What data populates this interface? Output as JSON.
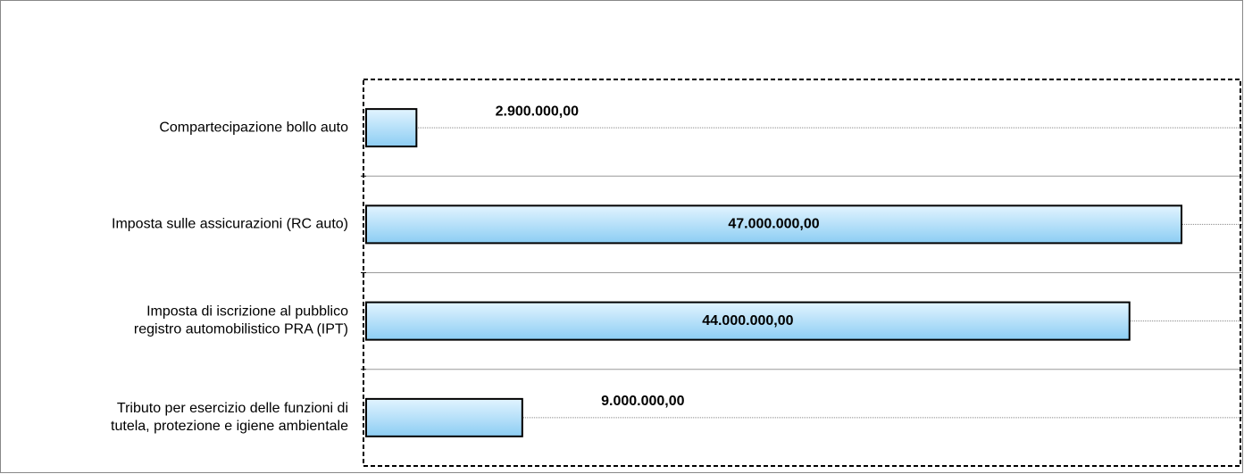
{
  "chart_data": {
    "type": "barh",
    "categories": [
      "Compartecipazione bollo auto",
      "Imposta sulle assicurazioni (RC auto)",
      "Imposta di iscrizione al pubblico\nregistro automobilistico PRA (IPT)",
      "Tributo per esercizio delle funzioni di\ntutela, protezione e igiene ambientale"
    ],
    "values": [
      2900000,
      47000000,
      44000000,
      9000000
    ],
    "value_labels": [
      "2.900.000,00",
      "47.000.000,00",
      "44.000.000,00",
      "9.000.000,00"
    ],
    "color": "#a9dcf7",
    "xlim": [
      0,
      50500000
    ],
    "grid": true
  }
}
